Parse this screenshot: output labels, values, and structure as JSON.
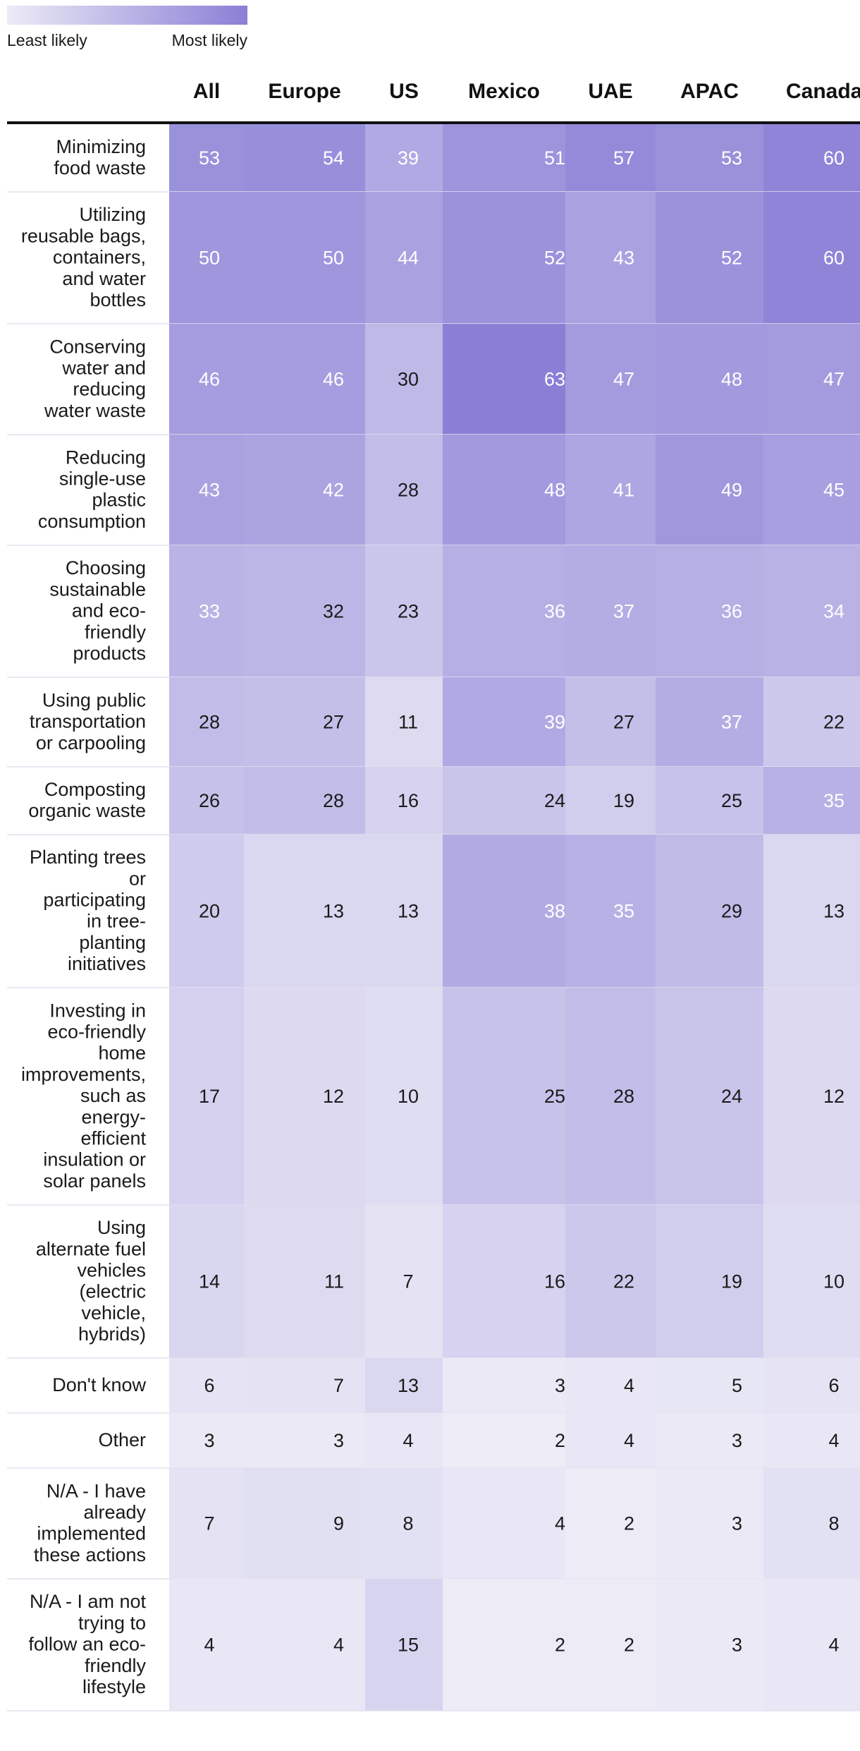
{
  "legend": {
    "min_label": "Least likely",
    "max_label": "Most likely",
    "min_color": "#ecebf6",
    "max_color": "#8a7fd6"
  },
  "chart_data": {
    "type": "heatmap",
    "columns": [
      "All",
      "Europe",
      "US",
      "Mexico",
      "UAE",
      "APAC",
      "Canada"
    ],
    "rows": [
      {
        "label": [
          "Minimizing",
          "food waste"
        ],
        "values": [
          53,
          54,
          39,
          51,
          57,
          53,
          60
        ]
      },
      {
        "label": [
          "Utilizing",
          "reusable bags,",
          "containers,",
          "and water",
          "bottles"
        ],
        "values": [
          50,
          50,
          44,
          52,
          43,
          52,
          60
        ]
      },
      {
        "label": [
          "Conserving",
          "water and",
          "reducing",
          "water waste"
        ],
        "values": [
          46,
          46,
          30,
          63,
          47,
          48,
          47
        ]
      },
      {
        "label": [
          "Reducing",
          "single-use",
          "plastic",
          "consumption"
        ],
        "values": [
          43,
          42,
          28,
          48,
          41,
          49,
          45
        ]
      },
      {
        "label": [
          "Choosing",
          "sustainable",
          "and eco-",
          "friendly",
          "products"
        ],
        "values": [
          33,
          32,
          23,
          36,
          37,
          36,
          34
        ]
      },
      {
        "label": [
          "Using public",
          "transportation",
          "or carpooling"
        ],
        "values": [
          28,
          27,
          11,
          39,
          27,
          37,
          22
        ]
      },
      {
        "label": [
          "Composting",
          "organic waste"
        ],
        "values": [
          26,
          28,
          16,
          24,
          19,
          25,
          35
        ]
      },
      {
        "label": [
          "Planting trees",
          "or",
          "participating",
          "in tree-",
          "planting",
          "initiatives"
        ],
        "values": [
          20,
          13,
          13,
          38,
          35,
          29,
          13
        ]
      },
      {
        "label": [
          "Investing in",
          "eco-friendly",
          "home",
          "improvements,",
          "such as",
          "energy-",
          "efficient",
          "insulation or",
          "solar panels"
        ],
        "values": [
          17,
          12,
          10,
          25,
          28,
          24,
          12
        ]
      },
      {
        "label": [
          "Using",
          "alternate fuel",
          "vehicles",
          "(electric",
          "vehicle,",
          "hybrids)"
        ],
        "values": [
          14,
          11,
          7,
          16,
          22,
          19,
          10
        ]
      },
      {
        "label": [
          "Don't know"
        ],
        "values": [
          6,
          7,
          13,
          3,
          4,
          5,
          6
        ]
      },
      {
        "label": [
          "Other"
        ],
        "values": [
          3,
          3,
          4,
          2,
          4,
          3,
          4
        ]
      },
      {
        "label": [
          "N/A - I have",
          "already",
          "implemented",
          "these actions"
        ],
        "values": [
          7,
          9,
          8,
          4,
          2,
          3,
          8
        ]
      },
      {
        "label": [
          "N/A - I am not",
          "trying to",
          "follow an eco-",
          "friendly",
          "lifestyle"
        ],
        "values": [
          4,
          4,
          15,
          2,
          2,
          3,
          4
        ]
      }
    ],
    "color_scale": {
      "min": 2,
      "max": 63
    }
  }
}
